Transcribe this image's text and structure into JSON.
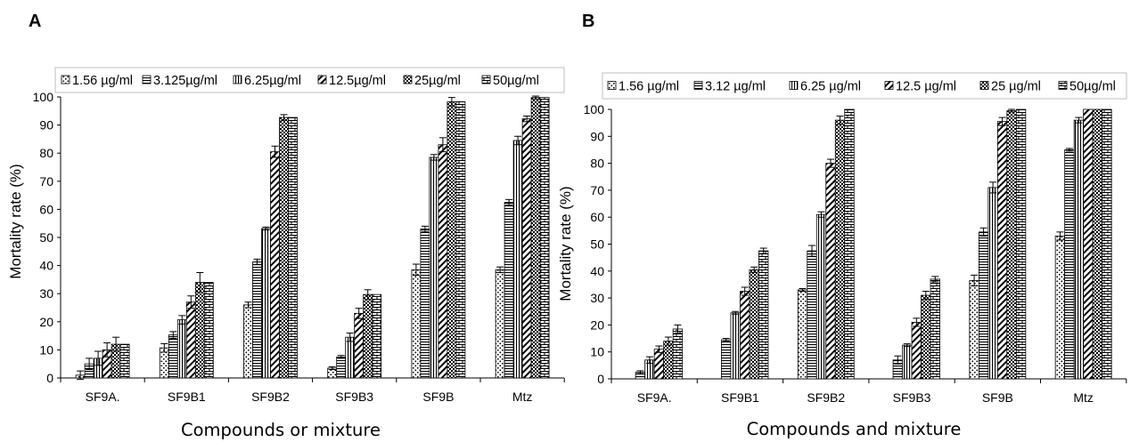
{
  "chart_data": [
    {
      "type": "bar",
      "panel_label": "A",
      "xlabel": "Compounds or mixture",
      "ylabel": "Mortality rate (%)",
      "ylim": [
        0,
        100
      ],
      "yticks": [
        0,
        10,
        20,
        30,
        40,
        50,
        60,
        70,
        80,
        90,
        100
      ],
      "categories": [
        "SF9A.",
        "SF9B1",
        "SF9B2",
        "SF9B3",
        "SF9B",
        "Mtz"
      ],
      "legend_position": "top",
      "series": [
        {
          "name": "1.56 µg/ml",
          "values": [
            1,
            10.7,
            26,
            3.5,
            38.5,
            38.5
          ],
          "errors": [
            1.5,
            1.5,
            1,
            0.5,
            2,
            1
          ]
        },
        {
          "name": "3.125µg/ml",
          "values": [
            5,
            15.3,
            41.3,
            7.5,
            53,
            62.5
          ],
          "errors": [
            2,
            1.2,
            1,
            0.5,
            1,
            1
          ]
        },
        {
          "name": "6.25µg/ml",
          "values": [
            7,
            20.7,
            53.2,
            14.5,
            78.5,
            84.5
          ],
          "errors": [
            2.5,
            1.5,
            0.5,
            1.5,
            1,
            1.5
          ]
        },
        {
          "name": "12.5µg/ml",
          "values": [
            10,
            27,
            80.5,
            23,
            83,
            92.2
          ],
          "errors": [
            2.5,
            2.2,
            2,
            1.8,
            2.5,
            1
          ]
        },
        {
          "name": "25µg/ml",
          "values": [
            12,
            34,
            92.7,
            29.7,
            98.3,
            99.8
          ],
          "errors": [
            2.5,
            3.5,
            1,
            1.7,
            1.5,
            0.5
          ]
        },
        {
          "name": "50µg/ml",
          "values": [
            12,
            34,
            92.7,
            29.7,
            98.3,
            99.8
          ],
          "errors": [
            0,
            0,
            0,
            0,
            0,
            0
          ]
        }
      ]
    },
    {
      "type": "bar",
      "panel_label": "B",
      "xlabel": "Compounds and mixture",
      "ylabel": "Mortality rate (%)",
      "ylim": [
        0,
        100
      ],
      "yticks": [
        0,
        10,
        20,
        30,
        40,
        50,
        60,
        70,
        80,
        90,
        100
      ],
      "categories": [
        "SF9A.",
        "SF9B1",
        "SF9B2",
        "SF9B3",
        "SF9B",
        "Mtz"
      ],
      "legend_position": "top",
      "series": [
        {
          "name": "1.56 µg/ml",
          "values": [
            0,
            0,
            33,
            0,
            36.5,
            53
          ],
          "errors": [
            0,
            0,
            0.5,
            0,
            2,
            1.5
          ]
        },
        {
          "name": "3.12 µg/ml",
          "values": [
            2.5,
            14.5,
            47.5,
            7,
            54.5,
            85
          ],
          "errors": [
            0.5,
            0.5,
            2,
            1.5,
            1.5,
            0.5
          ]
        },
        {
          "name": "6.25 µg/ml",
          "values": [
            7,
            24.5,
            61,
            12.5,
            71,
            96
          ],
          "errors": [
            1.2,
            0.5,
            1,
            0.5,
            2,
            1
          ]
        },
        {
          "name": "12.5 µg/ml",
          "values": [
            11,
            32.5,
            80,
            21,
            95.5,
            100
          ],
          "errors": [
            1.2,
            1.5,
            1.5,
            1.5,
            1.5,
            0
          ]
        },
        {
          "name": "25 µg/ml",
          "values": [
            14,
            40.5,
            96,
            31,
            99.5,
            100
          ],
          "errors": [
            1.5,
            1,
            1.5,
            1.5,
            0.5,
            0
          ]
        },
        {
          "name": "50µg/ml",
          "values": [
            18.5,
            47.5,
            100,
            37,
            100,
            100
          ],
          "errors": [
            1.5,
            1,
            0,
            1,
            0,
            0
          ]
        }
      ]
    }
  ]
}
